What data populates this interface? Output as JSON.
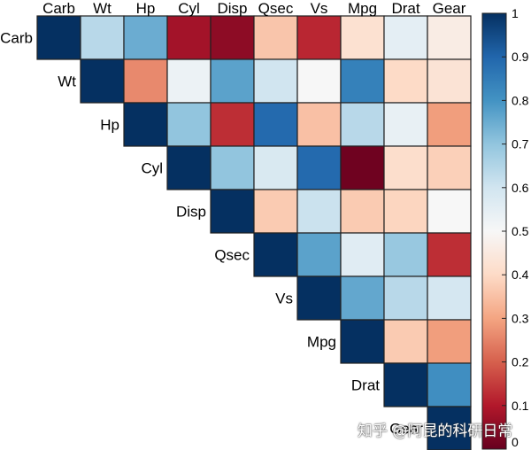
{
  "chart_data": {
    "type": "heatmap",
    "layout": "upper-triangle correlation matrix",
    "variables": [
      "Carb",
      "Wt",
      "Hp",
      "Cyl",
      "Disp",
      "Qsec",
      "Vs",
      "Mpg",
      "Drat",
      "Gear"
    ],
    "matrix": [
      [
        1.0,
        0.64,
        0.75,
        0.08,
        0.05,
        0.36,
        0.12,
        0.42,
        0.55,
        0.46
      ],
      [
        null,
        1.0,
        0.26,
        0.53,
        0.77,
        0.6,
        0.5,
        0.84,
        0.4,
        0.43
      ],
      [
        null,
        null,
        1.0,
        0.7,
        0.13,
        0.89,
        0.35,
        0.64,
        0.54,
        0.29
      ],
      [
        null,
        null,
        null,
        1.0,
        0.7,
        0.58,
        0.89,
        0.01,
        0.41,
        0.38
      ],
      [
        null,
        null,
        null,
        null,
        1.0,
        0.37,
        0.61,
        0.37,
        0.39,
        0.5
      ],
      [
        null,
        null,
        null,
        null,
        null,
        1.0,
        0.77,
        0.56,
        0.69,
        0.13
      ],
      [
        null,
        null,
        null,
        null,
        null,
        null,
        1.0,
        0.76,
        0.64,
        0.59
      ],
      [
        null,
        null,
        null,
        null,
        null,
        null,
        null,
        1.0,
        0.37,
        0.29
      ],
      [
        null,
        null,
        null,
        null,
        null,
        null,
        null,
        null,
        1.0,
        0.81
      ],
      [
        null,
        null,
        null,
        null,
        null,
        null,
        null,
        null,
        null,
        1.0
      ]
    ],
    "colorbar": {
      "min": 0,
      "max": 1,
      "ticks": [
        "0",
        "0.1",
        "0.2",
        "0.3",
        "0.4",
        "0.5",
        "0.6",
        "0.7",
        "0.8",
        "0.9",
        "1"
      ],
      "colormap": [
        "#67001f",
        "#b2182b",
        "#d6604d",
        "#f4a582",
        "#fddbc7",
        "#f7f7f7",
        "#d1e5f0",
        "#92c5de",
        "#4393c3",
        "#2166ac",
        "#053061"
      ]
    }
  },
  "watermark": "知乎 @阿昆的科研日常"
}
